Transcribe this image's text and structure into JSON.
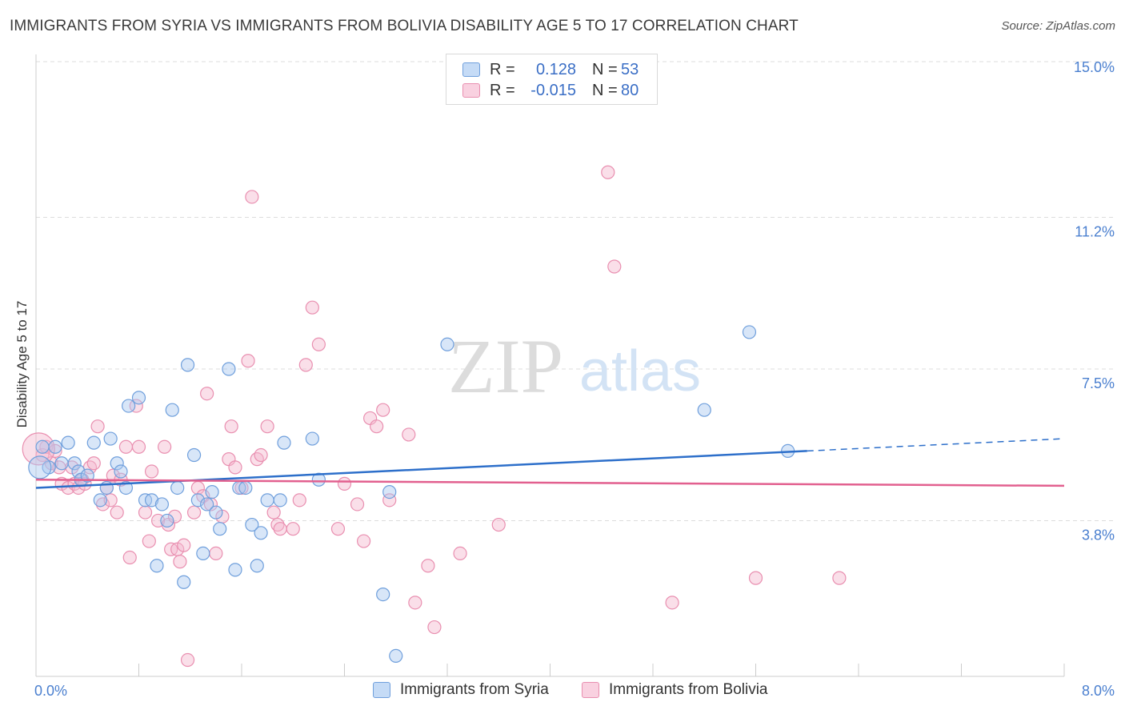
{
  "header": {
    "title": "IMMIGRANTS FROM SYRIA VS IMMIGRANTS FROM BOLIVIA DISABILITY AGE 5 TO 17 CORRELATION CHART",
    "source": "Source: ZipAtlas.com"
  },
  "legend": {
    "r_label": "R =",
    "n_label": "N =",
    "syria": {
      "r": "0.128",
      "n": "53"
    },
    "bolivia": {
      "r": "-0.015",
      "n": "80"
    }
  },
  "watermark": {
    "zip": "ZIP",
    "atlas": "atlas"
  },
  "colors": {
    "syria_fill": "#a9c8f0",
    "syria_stroke": "#6f9fdc",
    "syria_line": "#2d6fca",
    "bolivia_fill": "#f5b9cf",
    "bolivia_stroke": "#e98fb0",
    "bolivia_line": "#e2608f",
    "tick_label": "#4a7fcf",
    "grid": "#dddddd"
  },
  "chart_data": {
    "type": "scatter",
    "title": "IMMIGRANTS FROM SYRIA VS IMMIGRANTS FROM BOLIVIA DISABILITY AGE 5 TO 17 CORRELATION CHART",
    "xlabel": "",
    "ylabel": "Disability Age 5 to 17",
    "xlim": [
      0.0,
      8.0
    ],
    "ylim": [
      0.0,
      15.0
    ],
    "x_tick_labels": {
      "min": "0.0%",
      "max": "8.0%"
    },
    "y_ticks": [
      3.8,
      7.5,
      11.2,
      15.0
    ],
    "y_tick_labels": [
      "3.8%",
      "7.5%",
      "11.2%",
      "15.0%"
    ],
    "grid": true,
    "legend_position": "top-center",
    "series": [
      {
        "name": "Immigrants from Syria",
        "r": 0.128,
        "n": 53,
        "trend": {
          "x0": 0.0,
          "y0": 4.6,
          "x1": 6.0,
          "y1": 5.5,
          "dashed_to_x": 8.0,
          "dashed_to_y": 5.8
        },
        "points": [
          [
            0.05,
            5.6
          ],
          [
            0.1,
            5.1
          ],
          [
            0.15,
            5.6
          ],
          [
            0.2,
            5.2
          ],
          [
            0.25,
            5.7
          ],
          [
            0.3,
            5.2
          ],
          [
            0.33,
            5.0
          ],
          [
            0.35,
            4.8
          ],
          [
            0.4,
            4.9
          ],
          [
            0.45,
            5.7
          ],
          [
            0.5,
            4.3
          ],
          [
            0.55,
            4.6
          ],
          [
            0.58,
            5.8
          ],
          [
            0.63,
            5.2
          ],
          [
            0.66,
            5.0
          ],
          [
            0.7,
            4.6
          ],
          [
            0.72,
            6.6
          ],
          [
            0.8,
            6.8
          ],
          [
            0.85,
            4.3
          ],
          [
            0.9,
            4.3
          ],
          [
            0.94,
            2.7
          ],
          [
            0.98,
            4.2
          ],
          [
            1.02,
            3.8
          ],
          [
            1.06,
            6.5
          ],
          [
            1.1,
            4.6
          ],
          [
            1.15,
            2.3
          ],
          [
            1.18,
            7.6
          ],
          [
            1.23,
            5.4
          ],
          [
            1.26,
            4.3
          ],
          [
            1.3,
            3.0
          ],
          [
            1.33,
            4.2
          ],
          [
            1.37,
            4.5
          ],
          [
            1.4,
            4.0
          ],
          [
            1.43,
            3.6
          ],
          [
            1.5,
            7.5
          ],
          [
            1.55,
            2.6
          ],
          [
            1.58,
            4.6
          ],
          [
            1.63,
            4.6
          ],
          [
            1.68,
            3.7
          ],
          [
            1.72,
            2.7
          ],
          [
            1.75,
            3.5
          ],
          [
            1.8,
            4.3
          ],
          [
            1.9,
            4.3
          ],
          [
            1.93,
            5.7
          ],
          [
            2.15,
            5.8
          ],
          [
            2.2,
            4.8
          ],
          [
            2.75,
            4.5
          ],
          [
            2.7,
            2.0
          ],
          [
            2.8,
            0.5
          ],
          [
            3.2,
            8.1
          ],
          [
            5.2,
            6.5
          ],
          [
            5.55,
            8.4
          ],
          [
            5.85,
            5.5
          ]
        ]
      },
      {
        "name": "Immigrants from Bolivia",
        "r": -0.015,
        "n": 80,
        "trend": {
          "x0": 0.0,
          "y0": 4.8,
          "x1": 8.0,
          "y1": 4.65
        },
        "points": [
          [
            0.05,
            5.4
          ],
          [
            0.08,
            5.6
          ],
          [
            0.12,
            5.2
          ],
          [
            0.15,
            5.5
          ],
          [
            0.18,
            5.1
          ],
          [
            0.2,
            4.7
          ],
          [
            0.25,
            4.6
          ],
          [
            0.28,
            5.1
          ],
          [
            0.3,
            4.7
          ],
          [
            0.33,
            4.6
          ],
          [
            0.36,
            4.8
          ],
          [
            0.38,
            4.7
          ],
          [
            0.42,
            5.1
          ],
          [
            0.45,
            5.2
          ],
          [
            0.48,
            6.1
          ],
          [
            0.52,
            4.2
          ],
          [
            0.55,
            4.6
          ],
          [
            0.58,
            4.3
          ],
          [
            0.6,
            4.9
          ],
          [
            0.63,
            4.0
          ],
          [
            0.66,
            4.8
          ],
          [
            0.7,
            5.6
          ],
          [
            0.73,
            2.9
          ],
          [
            0.78,
            6.6
          ],
          [
            0.8,
            5.6
          ],
          [
            0.85,
            4.0
          ],
          [
            0.88,
            3.3
          ],
          [
            0.9,
            5.0
          ],
          [
            0.95,
            3.8
          ],
          [
            1.0,
            5.6
          ],
          [
            1.03,
            3.7
          ],
          [
            1.05,
            3.1
          ],
          [
            1.08,
            3.9
          ],
          [
            1.1,
            3.1
          ],
          [
            1.12,
            2.8
          ],
          [
            1.15,
            3.2
          ],
          [
            1.18,
            0.4
          ],
          [
            1.23,
            4.0
          ],
          [
            1.26,
            4.6
          ],
          [
            1.3,
            4.4
          ],
          [
            1.33,
            6.9
          ],
          [
            1.36,
            4.2
          ],
          [
            1.4,
            3.0
          ],
          [
            1.45,
            3.9
          ],
          [
            1.5,
            5.3
          ],
          [
            1.52,
            6.1
          ],
          [
            1.55,
            5.1
          ],
          [
            1.6,
            4.6
          ],
          [
            1.65,
            7.7
          ],
          [
            1.68,
            11.7
          ],
          [
            1.72,
            5.3
          ],
          [
            1.75,
            5.4
          ],
          [
            1.8,
            6.1
          ],
          [
            1.85,
            4.0
          ],
          [
            1.88,
            3.7
          ],
          [
            1.9,
            3.6
          ],
          [
            2.0,
            3.6
          ],
          [
            2.05,
            4.3
          ],
          [
            2.1,
            7.6
          ],
          [
            2.15,
            9.0
          ],
          [
            2.2,
            8.1
          ],
          [
            2.35,
            3.6
          ],
          [
            2.4,
            4.7
          ],
          [
            2.5,
            4.2
          ],
          [
            2.55,
            3.3
          ],
          [
            2.6,
            6.3
          ],
          [
            2.65,
            6.1
          ],
          [
            2.7,
            6.5
          ],
          [
            2.75,
            4.3
          ],
          [
            2.9,
            5.9
          ],
          [
            2.95,
            1.8
          ],
          [
            3.05,
            2.7
          ],
          [
            3.1,
            1.2
          ],
          [
            3.3,
            3.0
          ],
          [
            3.6,
            3.7
          ],
          [
            4.45,
            12.3
          ],
          [
            4.5,
            10.0
          ],
          [
            4.95,
            1.8
          ],
          [
            5.6,
            2.4
          ],
          [
            6.25,
            2.4
          ]
        ]
      }
    ]
  },
  "bottom_legend": {
    "syria": "Immigrants from Syria",
    "bolivia": "Immigrants from Bolivia"
  }
}
